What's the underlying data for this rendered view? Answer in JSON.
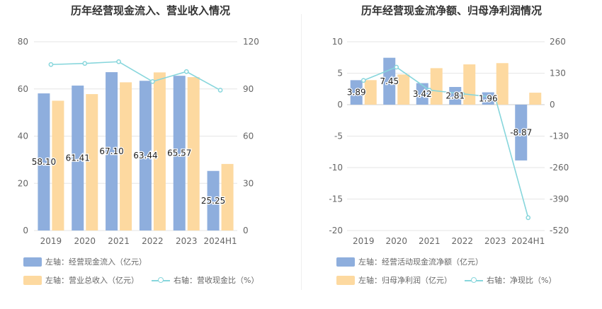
{
  "chart_data": [
    {
      "type": "bar",
      "title": "历年经营现金流入、营业收入情况",
      "categories": [
        "2019",
        "2020",
        "2021",
        "2022",
        "2023",
        "2024H1"
      ],
      "series": [
        {
          "name": "左轴：经营现金流入（亿元）",
          "type": "bar",
          "axis": "left",
          "color": "#8eaedd",
          "values": [
            58.1,
            61.41,
            67.1,
            63.44,
            65.57,
            25.25
          ],
          "labels": [
            "58.10",
            "61.41",
            "67.10",
            "63.44",
            "65.57",
            "25.25"
          ]
        },
        {
          "name": "左轴：营业总收入（亿元）",
          "type": "bar",
          "axis": "left",
          "color": "#fdd9a0",
          "values": [
            55.0,
            57.8,
            62.8,
            67.0,
            65.0,
            28.2
          ]
        },
        {
          "name": "右轴：营收现金比（%）",
          "type": "line",
          "axis": "right",
          "color": "#87d6dc",
          "values": [
            105.5,
            106.2,
            107.3,
            94.7,
            101.0,
            89.2
          ]
        }
      ],
      "left_axis": {
        "min": 0,
        "max": 80,
        "ticks": [
          "0",
          "20",
          "40",
          "60",
          "80"
        ]
      },
      "right_axis": {
        "min": 0,
        "max": 120,
        "ticks": [
          "0",
          "30",
          "60",
          "90",
          "120"
        ]
      },
      "grid": true,
      "legend_position": "bottom"
    },
    {
      "type": "bar",
      "title": "历年经营现金流净额、归母净利润情况",
      "categories": [
        "2019",
        "2020",
        "2021",
        "2022",
        "2023",
        "2024H1"
      ],
      "series": [
        {
          "name": "左轴：经营活动现金流净额（亿元）",
          "type": "bar",
          "axis": "left",
          "color": "#8eaedd",
          "values": [
            3.89,
            7.45,
            3.42,
            2.81,
            1.96,
            -8.87
          ],
          "labels": [
            "3.89",
            "7.45",
            "3.42",
            "2.81",
            "1.96",
            "-8.87"
          ]
        },
        {
          "name": "左轴：归母净利润（亿元）",
          "type": "bar",
          "axis": "left",
          "color": "#fdd9a0",
          "values": [
            3.9,
            4.8,
            5.8,
            6.4,
            6.6,
            1.9
          ]
        },
        {
          "name": "右轴：净现比（%）",
          "type": "line",
          "axis": "right",
          "color": "#87d6dc",
          "values": [
            100,
            155,
            60,
            45,
            30,
            -467
          ]
        }
      ],
      "left_axis": {
        "min": -20,
        "max": 10,
        "ticks": [
          "-20",
          "-15",
          "-10",
          "-5",
          "0",
          "5",
          "10"
        ]
      },
      "right_axis": {
        "min": -520,
        "max": 260,
        "ticks": [
          "-520",
          "-390",
          "-260",
          "-130",
          "0",
          "130",
          "260"
        ]
      },
      "grid": true,
      "legend_position": "bottom"
    }
  ],
  "legend": {
    "left": [
      {
        "label": "左轴：经营现金流入（亿元）",
        "kind": "rect",
        "color": "#8eaedd"
      },
      {
        "label": "左轴：营业总收入（亿元）",
        "kind": "rect",
        "color": "#fdd9a0"
      },
      {
        "label": "右轴：营收现金比（%）",
        "kind": "line",
        "color": "#87d6dc"
      }
    ],
    "right": [
      {
        "label": "左轴：经营活动现金流净额（亿元）",
        "kind": "rect",
        "color": "#8eaedd"
      },
      {
        "label": "左轴：归母净利润（亿元）",
        "kind": "rect",
        "color": "#fdd9a0"
      },
      {
        "label": "右轴：净现比（%）",
        "kind": "line",
        "color": "#87d6dc"
      }
    ]
  }
}
